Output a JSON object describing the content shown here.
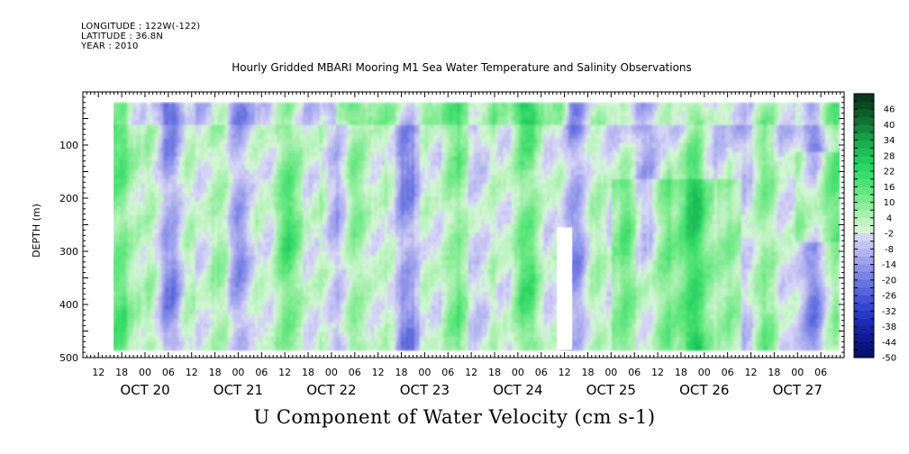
{
  "header": {
    "longitude": "LONGITUDE : 122W(-122)",
    "latitude": "LATITUDE : 36.8N",
    "year": "YEAR : 2010"
  },
  "chart_data": {
    "type": "heatmap",
    "title": "Hourly Gridded MBARI Mooring M1 Sea Water Temperature and Salinity Observations",
    "subtitle": "U Component of Water Velocity (cm s-1)",
    "xlabel": "",
    "ylabel": "DEPTH (m)",
    "y_axis": {
      "range": [
        500,
        0
      ],
      "ticks": [
        100,
        200,
        300,
        400,
        500
      ],
      "data_range": [
        20,
        485
      ],
      "inverted": true
    },
    "x_axis": {
      "start": "2010-10-19 08:00",
      "end": "2010-10-27 12:00",
      "data_start": "2010-10-19 14:00",
      "hour_tick_labels": [
        "12",
        "18",
        "00",
        "06",
        "12",
        "18",
        "00",
        "06",
        "12",
        "18",
        "00",
        "06",
        "12",
        "18",
        "00",
        "06",
        "12",
        "18",
        "00",
        "06",
        "12",
        "18",
        "00",
        "06",
        "12",
        "18",
        "00",
        "06",
        "12",
        "18",
        "00",
        "06"
      ],
      "day_labels": [
        "OCT 20",
        "OCT 21",
        "OCT 22",
        "OCT 23",
        "OCT 24",
        "OCT 25",
        "OCT 26",
        "OCT 27"
      ]
    },
    "colorbar": {
      "labels": [
        46,
        40,
        34,
        28,
        22,
        16,
        10,
        4,
        -2,
        -8,
        -14,
        -20,
        -26,
        -32,
        -38,
        -44,
        -50
      ],
      "levels": [
        52,
        49,
        46,
        43,
        40,
        37,
        34,
        31,
        28,
        25,
        22,
        19,
        16,
        13,
        10,
        7,
        4,
        1,
        -2,
        -5,
        -8,
        -11,
        -14,
        -17,
        -20,
        -23,
        -26,
        -29,
        -32,
        -35,
        -38,
        -41,
        -44,
        -47,
        -50
      ],
      "colors": [
        "#06381c",
        "#0a4a24",
        "#0e5e2c",
        "#117236",
        "#14873f",
        "#179c48",
        "#1aae50",
        "#1fbd57",
        "#26c95d",
        "#2fd464",
        "#3cdc6c",
        "#4ee275",
        "#62e680",
        "#78ea8d",
        "#90ed9c",
        "#a7f0ae",
        "#bff3c2",
        "#d2f5d4",
        "#d6d4f6",
        "#c4c4f2",
        "#b2b3ef",
        "#a0a3ec",
        "#8d92e8",
        "#7b82e4",
        "#6872e0",
        "#5663dc",
        "#4453d6",
        "#3545cf",
        "#2838c4",
        "#1d2cb6",
        "#1522a5",
        "#0f1a92",
        "#0b147e",
        "#07106a"
      ]
    },
    "missing_data": [
      {
        "x_start": "2010-10-24 10:00",
        "x_end": "2010-10-24 14:00",
        "depth_from": 255,
        "depth_to": 485
      }
    ],
    "grid": false,
    "legend": "right"
  }
}
